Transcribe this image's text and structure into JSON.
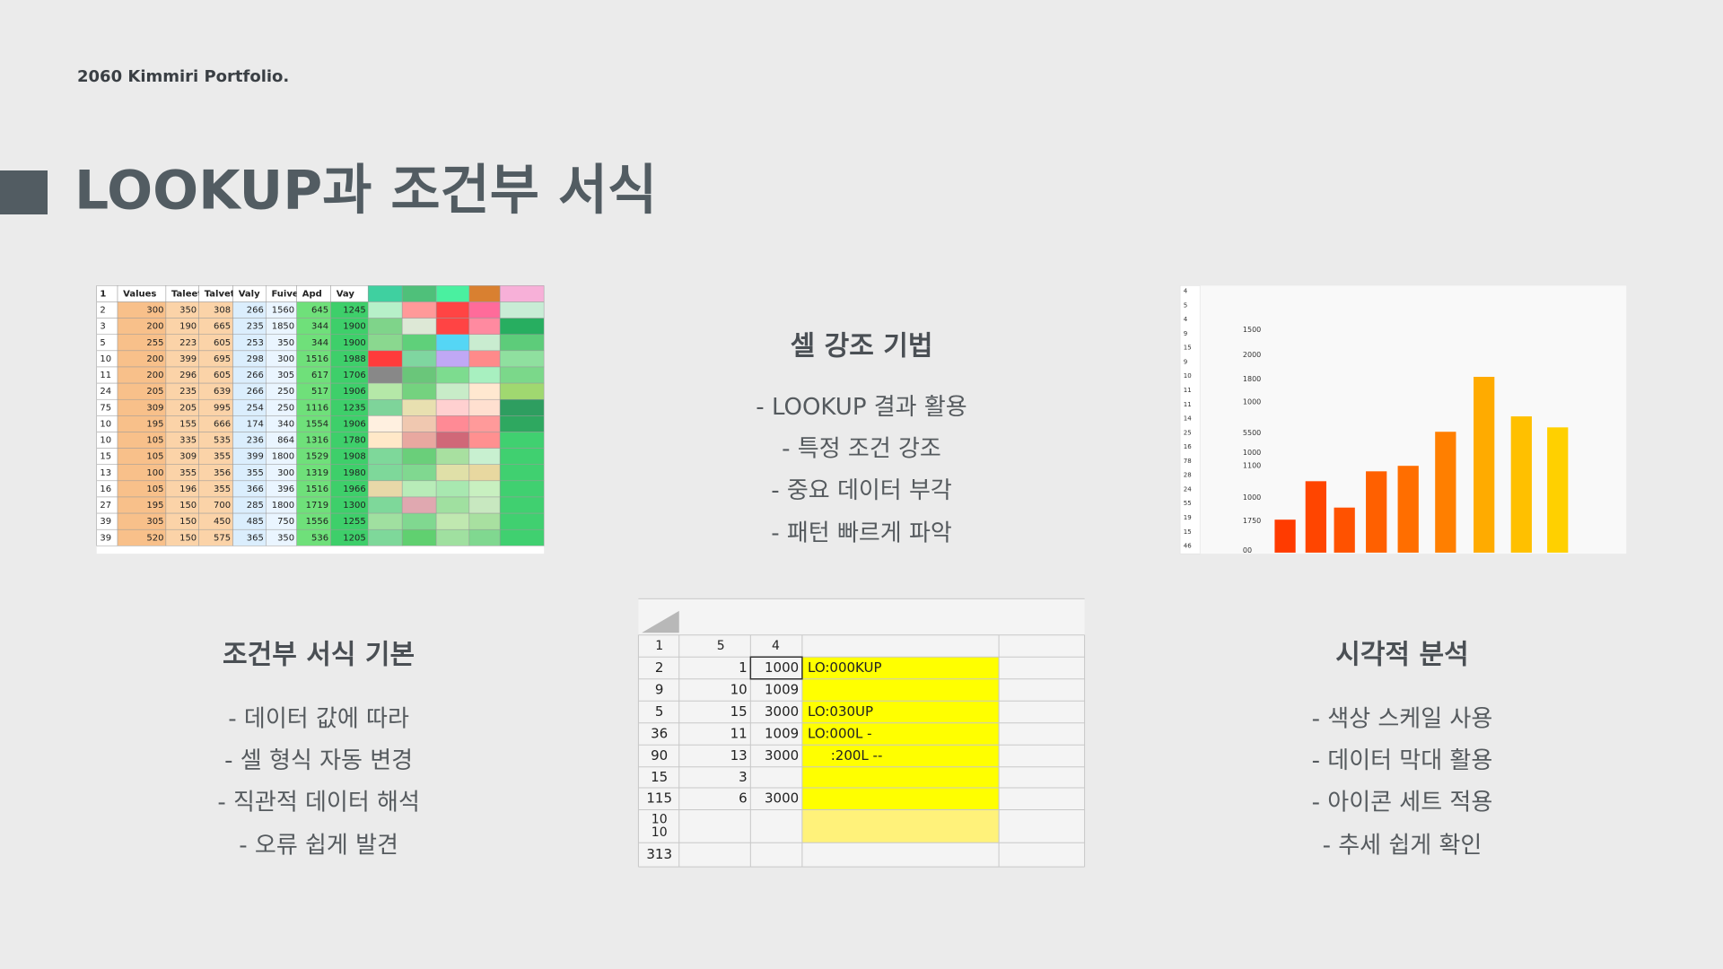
{
  "header": {
    "brand": "2060 Kimmiri Portfolio.",
    "title": "LOOKUP과 조건부 서식"
  },
  "sections": [
    {
      "heading": "셀 강조 기법",
      "items": [
        "- LOOKUP 결과 활용",
        "- 특정 조건 강조",
        "- 중요 데이터 부각",
        "- 패턴 빠르게 파악"
      ]
    },
    {
      "heading": "조건부 서식 기본",
      "items": [
        "- 데이터 값에 따라",
        "- 셀 형식 자동 변경",
        "- 직관적 데이터 해석",
        "- 오류 쉽게 발견"
      ]
    },
    {
      "heading": "시각적 분석",
      "items": [
        "- 색상 스케일 사용",
        "- 데이터 막대 활용",
        "- 아이콘 세트 적용",
        "- 추세 쉽게 확인"
      ]
    }
  ],
  "images": {
    "color_table": {
      "columns": [
        1,
        "Values",
        "Taleet",
        "Talvet",
        "Valy",
        "Fuived",
        "Apd",
        "Vay"
      ],
      "rows": [
        [
          2,
          300,
          350,
          308,
          266,
          1560,
          645,
          1245
        ],
        [
          3,
          200,
          190,
          665,
          235,
          1850,
          344,
          1900
        ],
        [
          5,
          255,
          223,
          605,
          253,
          350,
          344,
          1900
        ],
        [
          10,
          200,
          399,
          695,
          298,
          300,
          1516,
          1988
        ],
        [
          11,
          200,
          296,
          605,
          266,
          305,
          617,
          1706
        ],
        [
          24,
          205,
          235,
          639,
          266,
          250,
          517,
          1906
        ],
        [
          75,
          309,
          205,
          995,
          254,
          250,
          1116,
          1235
        ],
        [
          10,
          195,
          155,
          666,
          174,
          340,
          1554,
          1906
        ],
        [
          10,
          105,
          335,
          535,
          236,
          864,
          1316,
          1780
        ],
        [
          15,
          105,
          309,
          355,
          399,
          1800,
          1529,
          1908
        ],
        [
          13,
          100,
          355,
          356,
          355,
          300,
          1319,
          1980
        ],
        [
          16,
          105,
          196,
          355,
          366,
          396,
          1516,
          1966
        ],
        [
          27,
          195,
          150,
          700,
          285,
          1800,
          1719,
          1300
        ],
        [
          39,
          305,
          150,
          450,
          485,
          750,
          1556,
          1255
        ],
        [
          39,
          520,
          150,
          575,
          365,
          350,
          536,
          1205
        ]
      ]
    },
    "bar_chart": {
      "row_labels": [
        4,
        5,
        4,
        9,
        15,
        9,
        10,
        11,
        11,
        14,
        25,
        16,
        78,
        28,
        24,
        55,
        19,
        15,
        46
      ],
      "axis_labels": [
        1500,
        2000,
        1800,
        1000,
        5500,
        1000,
        1100,
        1000,
        1750,
        "00"
      ]
    },
    "lookup_sheet": {
      "header": [
        1,
        5,
        4
      ],
      "rows": [
        [
          2,
          1,
          1000,
          "LO:000KUP"
        ],
        [
          9,
          10,
          1009,
          null
        ],
        [
          5,
          15,
          3000,
          "LO:030UP"
        ],
        [
          36,
          11,
          1009,
          "LO:000L -"
        ],
        [
          90,
          13,
          3000,
          ":200L --"
        ],
        [
          15,
          3,
          null,
          null
        ],
        [
          115,
          6,
          3000,
          null
        ],
        [
          [
            10,
            10
          ],
          null,
          null,
          null
        ],
        [
          313,
          null,
          null,
          null
        ]
      ]
    }
  }
}
